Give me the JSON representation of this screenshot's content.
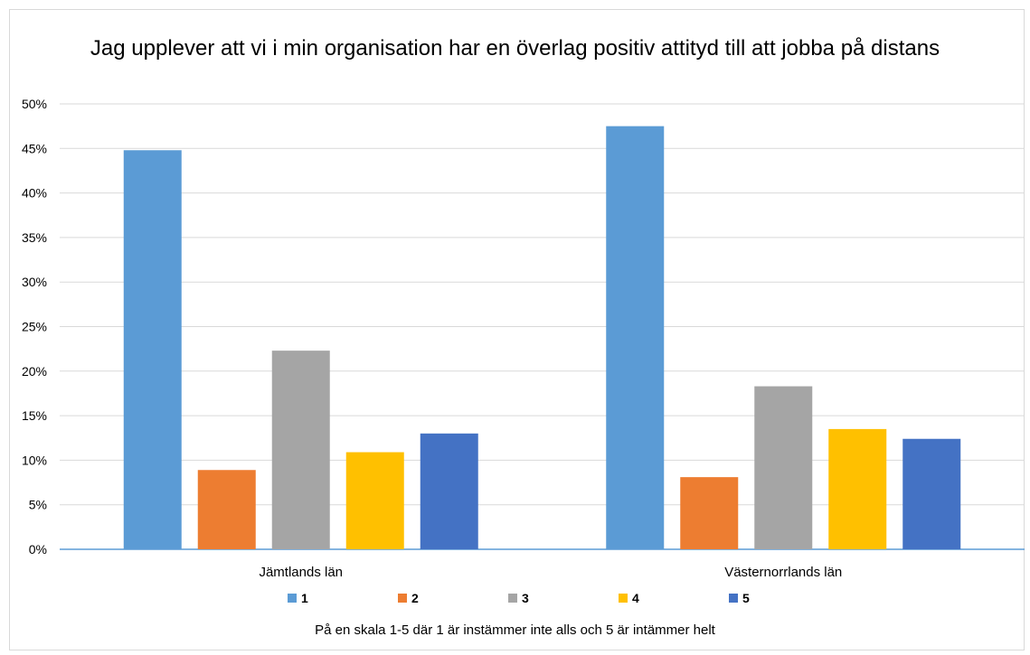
{
  "chart_data": {
    "type": "bar",
    "title": "Jag upplever att vi i min organisation har en överlag positiv attityd till att jobba på distans",
    "categories": [
      "Jämtlands län",
      "Västernorrlands län"
    ],
    "series": [
      {
        "name": "1",
        "color": "#5b9bd5",
        "values": [
          44.8,
          47.5
        ]
      },
      {
        "name": "2",
        "color": "#ed7d31",
        "values": [
          8.9,
          8.1
        ]
      },
      {
        "name": "3",
        "color": "#a5a5a5",
        "values": [
          22.3,
          18.3
        ]
      },
      {
        "name": "4",
        "color": "#ffc000",
        "values": [
          10.9,
          13.5
        ]
      },
      {
        "name": "5",
        "color": "#4472c4",
        "values": [
          13.0,
          12.4
        ]
      }
    ],
    "ylim": [
      0,
      50
    ],
    "yticks": [
      "0%",
      "5%",
      "10%",
      "15%",
      "20%",
      "25%",
      "30%",
      "35%",
      "40%",
      "45%",
      "50%"
    ],
    "grid": true,
    "legend_position": "bottom",
    "note": "På en skala 1-5 där 1 är instämmer inte alls och 5 är intämmer helt"
  }
}
